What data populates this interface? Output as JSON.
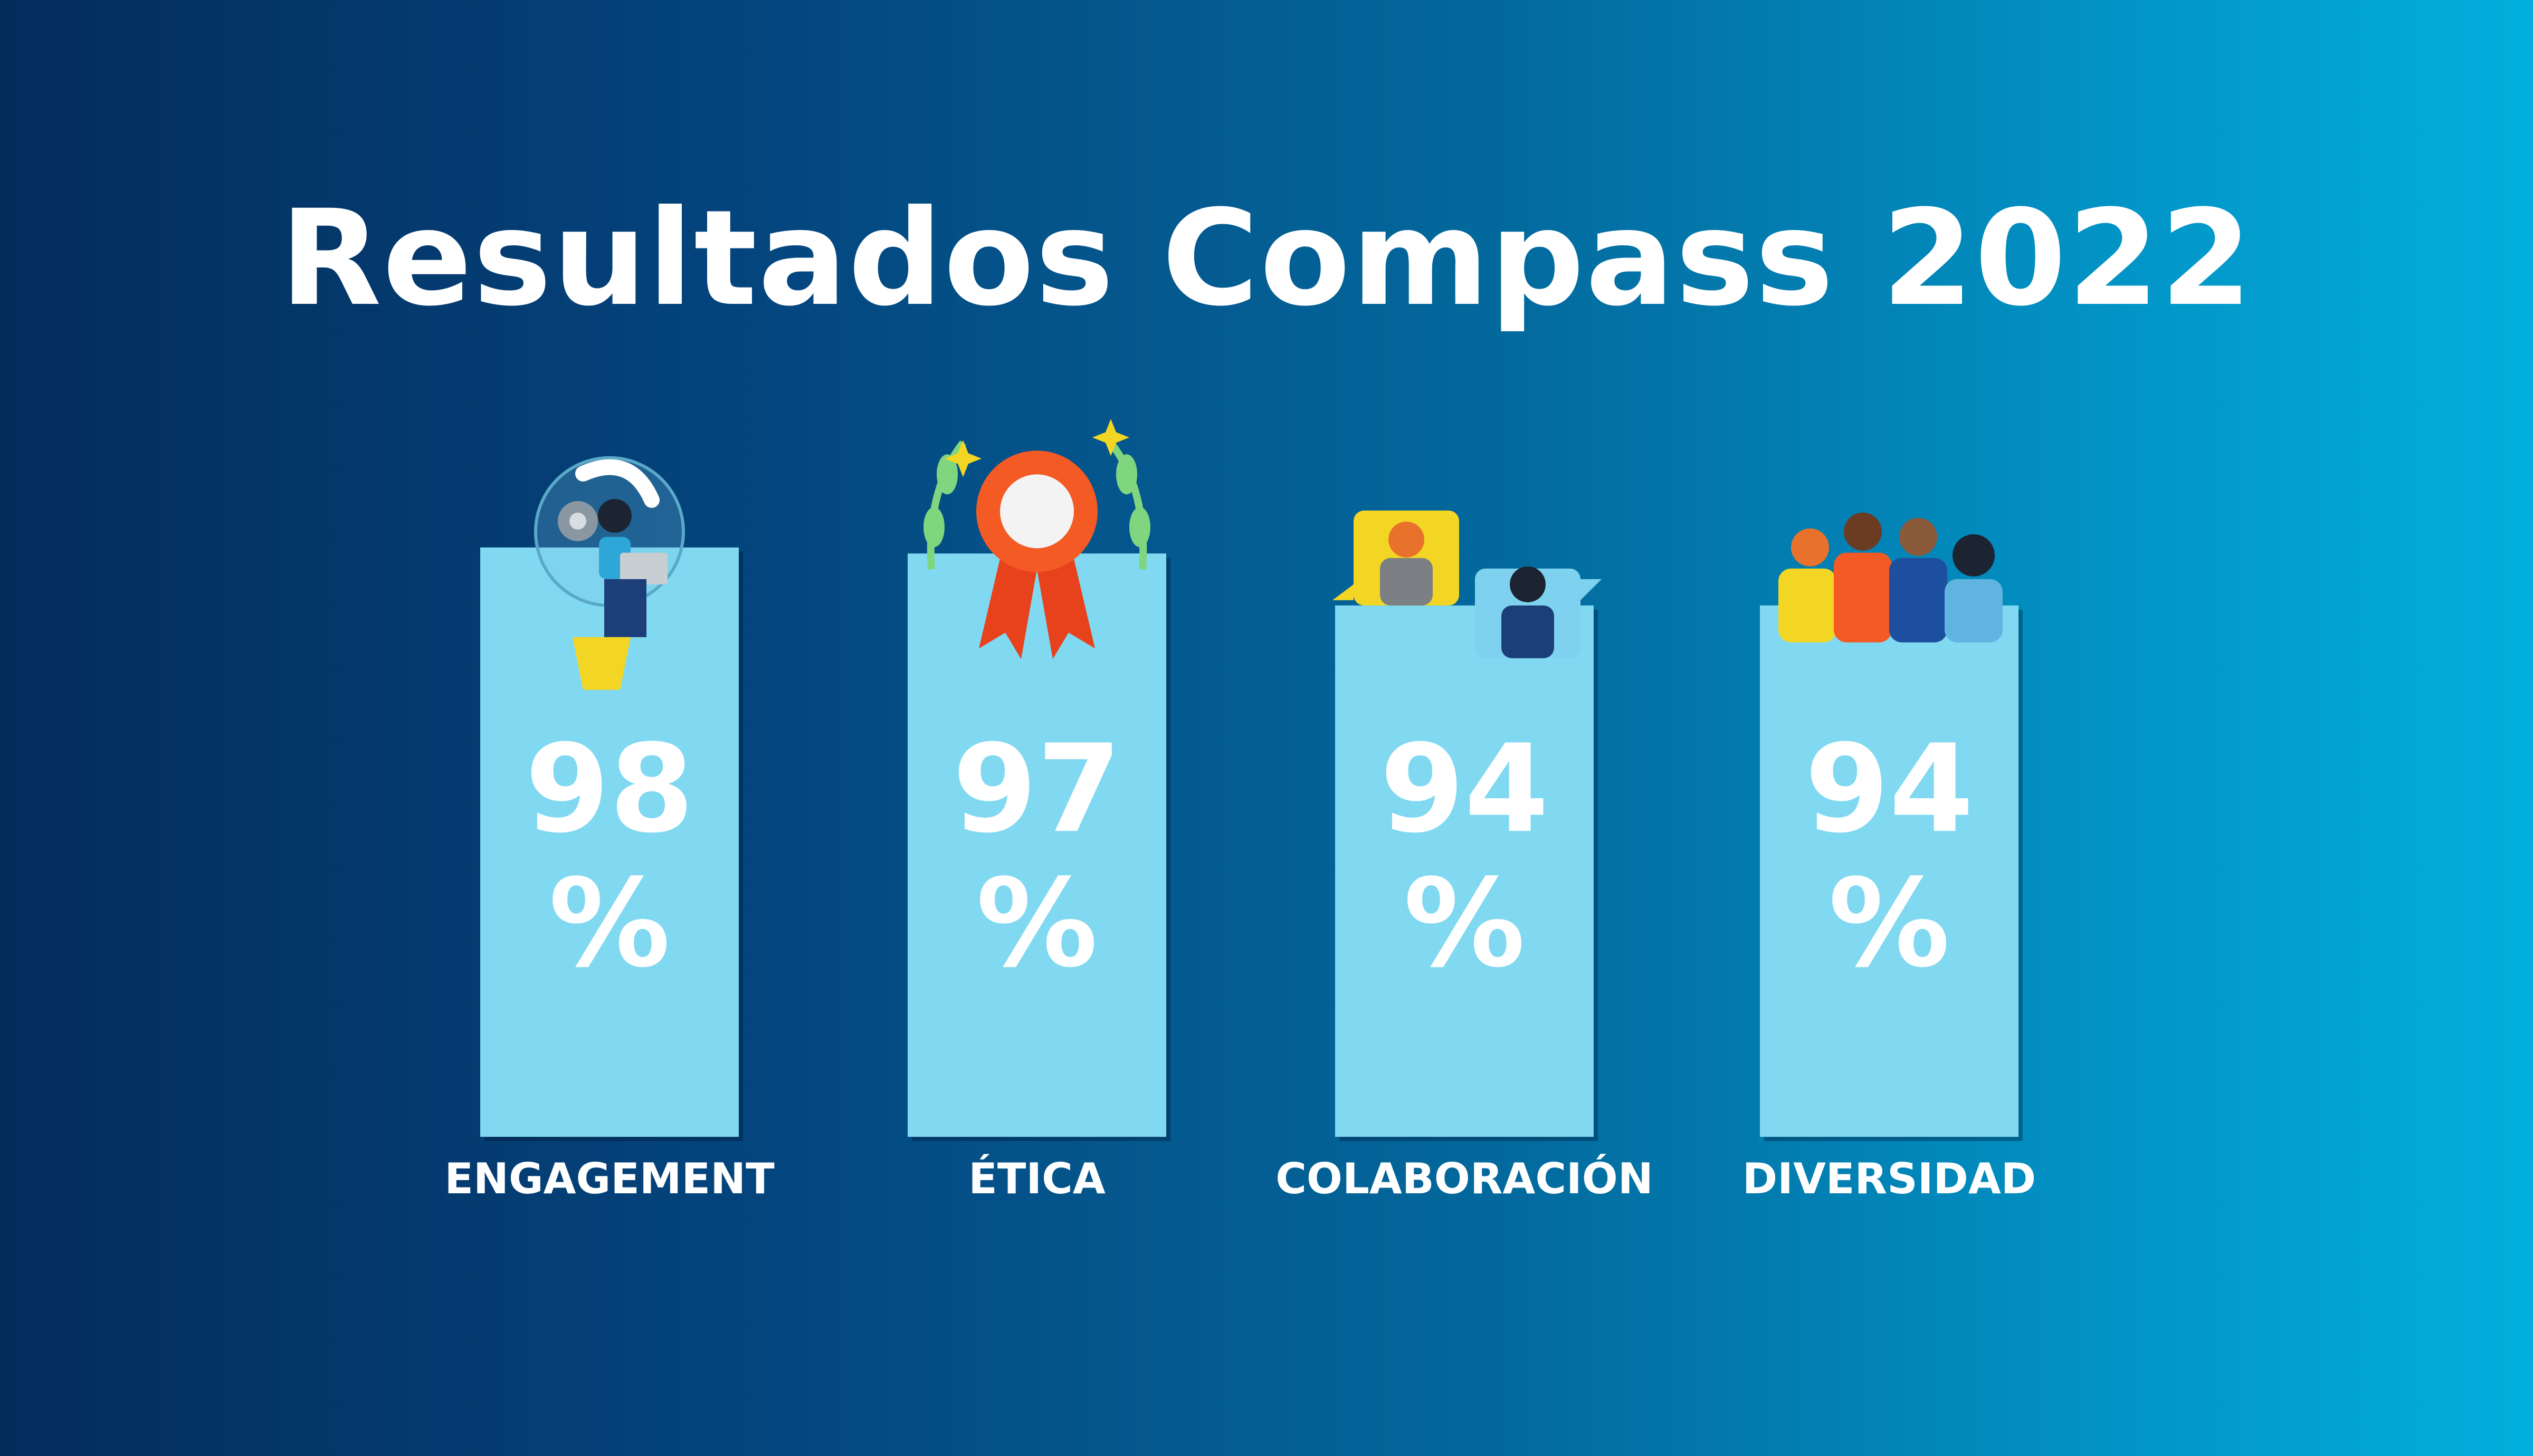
{
  "title": "Resultados Compass 2022",
  "chart_data": {
    "type": "bar",
    "title": "Resultados Compass 2022",
    "categories": [
      "ENGAGEMENT",
      "ÉTICA",
      "COLABORACIÓN",
      "DIVERSIDAD"
    ],
    "values": [
      98,
      97,
      94,
      94
    ],
    "value_suffix": "%",
    "ylim": [
      0,
      100
    ],
    "grid": false,
    "bar_color": "#80d9f1",
    "icons": [
      "person-with-laptop-lightbulb-icon",
      "award-rosette-laurel-icon",
      "video-call-people-icon",
      "diverse-group-icon"
    ]
  }
}
